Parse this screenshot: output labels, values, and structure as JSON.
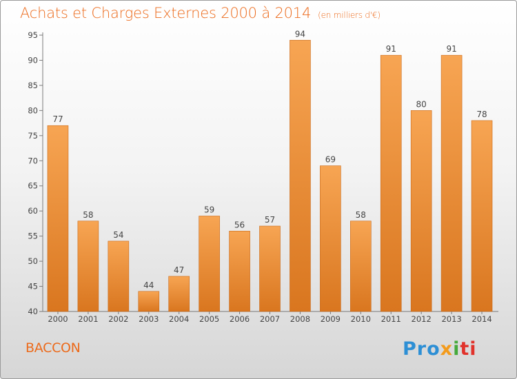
{
  "header": {
    "title": "Achats et Charges Externes 2000 à 2014",
    "unit": "(en milliers d'€)"
  },
  "commune": "BACCON",
  "logo": {
    "text": "Proxiti",
    "parts": [
      "Pro",
      "x",
      "i",
      "ti"
    ]
  },
  "colors": {
    "accent": "#ec6a1b",
    "bar_light": "#f7a553",
    "bar_dark": "#d9761f"
  },
  "chart_data": {
    "type": "bar",
    "title": "Achats et Charges Externes 2000 à 2014",
    "subtitle": "(en milliers d'€)",
    "xlabel": "",
    "ylabel": "",
    "categories": [
      "2000",
      "2001",
      "2002",
      "2003",
      "2004",
      "2005",
      "2006",
      "2007",
      "2008",
      "2009",
      "2010",
      "2011",
      "2012",
      "2013",
      "2014"
    ],
    "values": [
      77,
      58,
      54,
      44,
      47,
      59,
      56,
      57,
      94,
      69,
      58,
      91,
      80,
      91,
      78
    ],
    "ylim": [
      40,
      95
    ],
    "yticks": [
      40,
      45,
      50,
      55,
      60,
      65,
      70,
      75,
      80,
      85,
      90,
      95
    ],
    "grid": false,
    "legend": "none"
  }
}
